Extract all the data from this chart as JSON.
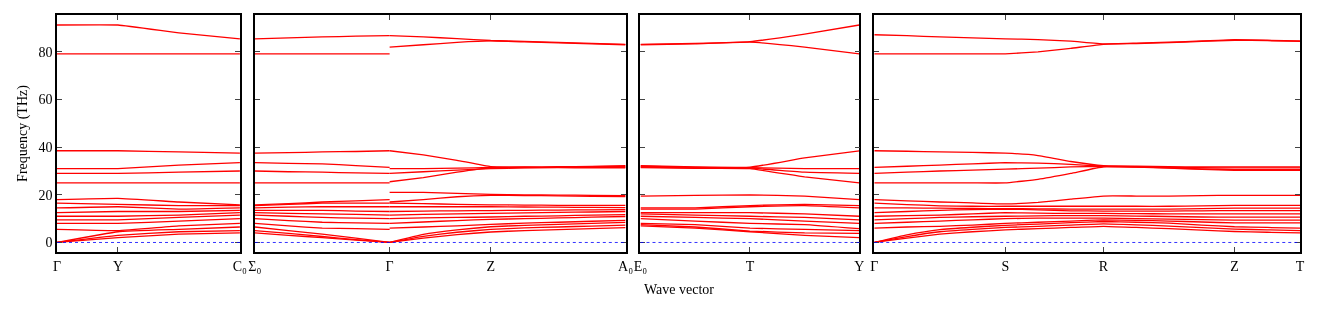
{
  "chart_data": [
    {
      "type": "line",
      "ylabel": "Frequency (THz)",
      "categories": [
        "Γ",
        "Y",
        null,
        "C₀"
      ],
      "ylim": [
        -4,
        95.5
      ],
      "yticks": [
        0,
        20,
        40,
        60,
        80
      ],
      "line_style": "solid",
      "marker": "none",
      "ref_lines": [
        {
          "axis": "y",
          "value": 0,
          "color": "#0000ff",
          "line_style": "dotted"
        }
      ],
      "series": [
        {
          "color": "#ff0000",
          "values": [
            91.3,
            91.3,
            88,
            85.5
          ]
        },
        {
          "color": "#ff0000",
          "values": [
            79.2,
            79.2,
            79.2,
            79.2
          ]
        },
        {
          "color": "#ff0000",
          "values": [
            38.5,
            38.5,
            38,
            37.5
          ]
        },
        {
          "color": "#ff0000",
          "values": [
            31,
            31,
            32.5,
            33.5
          ]
        },
        {
          "color": "#ff0000",
          "values": [
            29,
            29,
            29.5,
            30
          ]
        },
        {
          "color": "#ff0000",
          "values": [
            25,
            25,
            25,
            25
          ]
        },
        {
          "color": "#ff0000",
          "values": [
            0,
            2,
            3.5,
            4
          ]
        },
        {
          "color": "#ff0000",
          "values": [
            0,
            3,
            4.5,
            5
          ]
        },
        {
          "color": "#ff0000",
          "values": [
            0,
            4.5,
            5.5,
            6.5
          ]
        },
        {
          "color": "#ff0000",
          "values": [
            5.5,
            5,
            7,
            8
          ]
        },
        {
          "color": "#ff0000",
          "values": [
            8,
            8,
            9,
            10
          ]
        },
        {
          "color": "#ff0000",
          "values": [
            9.5,
            9.5,
            10.5,
            11.5
          ]
        },
        {
          "color": "#ff0000",
          "values": [
            11,
            11,
            11.5,
            12.5
          ]
        },
        {
          "color": "#ff0000",
          "values": [
            12.5,
            13,
            13,
            13.5
          ]
        },
        {
          "color": "#ff0000",
          "values": [
            14.5,
            15,
            14,
            14.5
          ]
        },
        {
          "color": "#ff0000",
          "values": [
            16.5,
            16,
            15.5,
            15.5
          ]
        },
        {
          "color": "#ff0000",
          "values": [
            18,
            18.5,
            17,
            15.8
          ]
        }
      ]
    },
    {
      "type": "line",
      "tick_labels": "x",
      "categories": [
        "Σ₀",
        null,
        null,
        null,
        "Γ",
        null,
        null,
        "Z",
        null,
        null,
        null,
        "A₀"
      ],
      "ylim": [
        -4,
        95.5
      ],
      "yticks": [
        {
          "value": 0,
          "label": null
        },
        {
          "value": 20,
          "label": null
        },
        {
          "value": 40,
          "label": null
        },
        {
          "value": 60,
          "label": null
        },
        {
          "value": 80,
          "label": null
        }
      ],
      "line_style": "solid",
      "marker": "none",
      "ref_lines": [
        {
          "axis": "y",
          "value": 0,
          "color": "#0000ff",
          "line_style": "dotted"
        }
      ],
      "series": [
        {
          "color": "#ff0000",
          "values": [
            85.5,
            85.9,
            86.3,
            86.6,
            86.8,
            null,
            null,
            null,
            null,
            null,
            null,
            null
          ]
        },
        {
          "color": "#ff0000",
          "values": [
            79.2,
            79.2,
            79.2,
            79.2,
            79.2,
            null,
            null,
            null,
            null,
            null,
            null,
            null
          ]
        },
        {
          "color": "#ff0000",
          "values": [
            37.5,
            37.7,
            38,
            38.2,
            38.5,
            null,
            null,
            null,
            null,
            null,
            null,
            null
          ]
        },
        {
          "color": "#ff0000",
          "values": [
            33.5,
            33.2,
            33,
            32.3,
            31.5,
            null,
            null,
            null,
            null,
            null,
            null,
            null
          ]
        },
        {
          "color": "#ff0000",
          "values": [
            30,
            29.7,
            29.5,
            29.2,
            29,
            null,
            null,
            null,
            null,
            null,
            null,
            null
          ]
        },
        {
          "color": "#ff0000",
          "values": [
            25,
            25,
            25,
            25,
            25,
            null,
            null,
            null,
            null,
            null,
            null,
            null
          ]
        },
        {
          "color": "#ff0000",
          "values": [
            4,
            3,
            2,
            1,
            0,
            null,
            null,
            null,
            null,
            null,
            null,
            null
          ]
        },
        {
          "color": "#ff0000",
          "values": [
            5,
            3.8,
            2.5,
            1.2,
            0,
            null,
            null,
            null,
            null,
            null,
            null,
            null
          ]
        },
        {
          "color": "#ff0000",
          "values": [
            6.5,
            5,
            3.5,
            1.8,
            0,
            null,
            null,
            null,
            null,
            null,
            null,
            null
          ]
        },
        {
          "color": "#ff0000",
          "values": [
            8,
            7,
            6,
            5.8,
            5.5,
            null,
            null,
            null,
            null,
            null,
            null,
            null
          ]
        },
        {
          "color": "#ff0000",
          "values": [
            10,
            9.2,
            8.5,
            8.2,
            8,
            null,
            null,
            null,
            null,
            null,
            null,
            null
          ]
        },
        {
          "color": "#ff0000",
          "values": [
            11.5,
            11,
            10.5,
            10.2,
            10,
            null,
            null,
            null,
            null,
            null,
            null,
            null
          ]
        },
        {
          "color": "#ff0000",
          "values": [
            12.5,
            12.2,
            12,
            11.8,
            11.5,
            null,
            null,
            null,
            null,
            null,
            null,
            null
          ]
        },
        {
          "color": "#ff0000",
          "values": [
            13.5,
            13.5,
            13.5,
            13.2,
            13,
            null,
            null,
            null,
            null,
            null,
            null,
            null
          ]
        },
        {
          "color": "#ff0000",
          "values": [
            14.5,
            14.8,
            15,
            15,
            15,
            null,
            null,
            null,
            null,
            null,
            null,
            null
          ]
        },
        {
          "color": "#ff0000",
          "values": [
            15.5,
            16,
            16.5,
            16.5,
            16.5,
            null,
            null,
            null,
            null,
            null,
            null,
            null
          ]
        },
        {
          "color": "#ff0000",
          "values": [
            15.8,
            16.3,
            17,
            17.5,
            18,
            null,
            null,
            null,
            null,
            null,
            null,
            null
          ]
        },
        {
          "color": "#ff0000",
          "values": [
            null,
            null,
            null,
            null,
            86.8,
            86.3,
            85.6,
            84.8,
            84.4,
            84,
            83.6,
            83.2
          ]
        },
        {
          "color": "#ff0000",
          "values": [
            null,
            null,
            null,
            null,
            82,
            83,
            84,
            84.6,
            84.2,
            83.8,
            83.4,
            83
          ]
        },
        {
          "color": "#ff0000",
          "values": [
            null,
            null,
            null,
            null,
            38.5,
            36.8,
            34.5,
            31.8,
            31.6,
            31.5,
            31.5,
            31.5
          ]
        },
        {
          "color": "#ff0000",
          "values": [
            null,
            null,
            null,
            null,
            31,
            31,
            31.2,
            31.5,
            31.7,
            31.8,
            31.9,
            32
          ]
        },
        {
          "color": "#ff0000",
          "values": [
            null,
            null,
            null,
            null,
            29,
            29.7,
            30.4,
            31,
            31.3,
            31.5,
            31.8,
            32.2
          ]
        },
        {
          "color": "#ff0000",
          "values": [
            null,
            null,
            null,
            null,
            25.5,
            27.2,
            29.5,
            31.3,
            31.4,
            31.4,
            31.3,
            31.3
          ]
        },
        {
          "color": "#ff0000",
          "values": [
            null,
            null,
            null,
            null,
            21,
            21,
            20.6,
            20.2,
            20,
            19.9,
            19.8,
            19.7
          ]
        },
        {
          "color": "#ff0000",
          "values": [
            null,
            null,
            null,
            null,
            17,
            18,
            19.2,
            19.8,
            19.7,
            19.6,
            19.4,
            19.3
          ]
        },
        {
          "color": "#ff0000",
          "values": [
            null,
            null,
            null,
            null,
            0,
            1.8,
            3.3,
            4.4,
            5,
            5.4,
            5.8,
            6.2
          ]
        },
        {
          "color": "#ff0000",
          "values": [
            null,
            null,
            null,
            null,
            0,
            2.6,
            4.3,
            5.5,
            6.1,
            6.5,
            6.9,
            7.3
          ]
        },
        {
          "color": "#ff0000",
          "values": [
            null,
            null,
            null,
            null,
            0,
            3.4,
            5.3,
            6.6,
            7.2,
            7.6,
            8,
            8.4
          ]
        },
        {
          "color": "#ff0000",
          "values": [
            null,
            null,
            null,
            null,
            6,
            6.5,
            7,
            7.6,
            8.1,
            8.5,
            8.9,
            9.3
          ]
        },
        {
          "color": "#ff0000",
          "values": [
            null,
            null,
            null,
            null,
            8,
            8.6,
            9.2,
            9.7,
            10,
            10.3,
            10.6,
            10.9
          ]
        },
        {
          "color": "#ff0000",
          "values": [
            null,
            null,
            null,
            null,
            10,
            10.3,
            10.5,
            10.7,
            11,
            11.2,
            11.5,
            11.7
          ]
        },
        {
          "color": "#ff0000",
          "values": [
            null,
            null,
            null,
            null,
            11.5,
            11.8,
            12,
            12.2,
            12.4,
            12.6,
            12.8,
            13
          ]
        },
        {
          "color": "#ff0000",
          "values": [
            null,
            null,
            null,
            null,
            13,
            13.2,
            13.3,
            13.4,
            13.5,
            13.6,
            13.7,
            13.8
          ]
        },
        {
          "color": "#ff0000",
          "values": [
            null,
            null,
            null,
            null,
            15,
            15,
            15,
            15,
            14.9,
            14.8,
            14.7,
            14.6
          ]
        },
        {
          "color": "#ff0000",
          "values": [
            null,
            null,
            null,
            null,
            16.5,
            16.3,
            16,
            15.8,
            15.7,
            15.6,
            15.6,
            15.6
          ]
        }
      ]
    },
    {
      "type": "line",
      "tick_labels": "x",
      "xlabel": "Wave vector",
      "categories": [
        "E₀",
        null,
        "T",
        null,
        "Y"
      ],
      "ylim": [
        -4,
        95.5
      ],
      "yticks": [
        {
          "value": 0,
          "label": null
        },
        {
          "value": 20,
          "label": null
        },
        {
          "value": 40,
          "label": null
        },
        {
          "value": 60,
          "label": null
        },
        {
          "value": 80,
          "label": null
        }
      ],
      "line_style": "solid",
      "marker": "none",
      "ref_lines": [
        {
          "axis": "y",
          "value": 0,
          "color": "#0000ff",
          "line_style": "dotted"
        }
      ],
      "series": [
        {
          "color": "#ff0000",
          "values": [
            83.2,
            83.6,
            84.3,
            87.5,
            91.3
          ]
        },
        {
          "color": "#ff0000",
          "values": [
            83,
            83.4,
            84.1,
            82,
            79.2
          ]
        },
        {
          "color": "#ff0000",
          "values": [
            32.2,
            31.7,
            31.6,
            35.5,
            38.5
          ]
        },
        {
          "color": "#ff0000",
          "values": [
            32,
            31.5,
            31.4,
            31,
            31
          ]
        },
        {
          "color": "#ff0000",
          "values": [
            31.6,
            31.3,
            31.2,
            29.5,
            29
          ]
        },
        {
          "color": "#ff0000",
          "values": [
            31.4,
            31.1,
            31,
            27.5,
            25
          ]
        },
        {
          "color": "#ff0000",
          "values": [
            19.5,
            19.8,
            20,
            19.5,
            18
          ]
        },
        {
          "color": "#ff0000",
          "values": [
            7,
            6,
            4.5,
            3,
            2
          ]
        },
        {
          "color": "#ff0000",
          "values": [
            7.5,
            6.5,
            4.8,
            4,
            3.8
          ]
        },
        {
          "color": "#ff0000",
          "values": [
            8,
            7.5,
            6,
            5.5,
            5
          ]
        },
        {
          "color": "#ff0000",
          "values": [
            10,
            9,
            8,
            7.5,
            5.8
          ]
        },
        {
          "color": "#ff0000",
          "values": [
            11,
            10.5,
            10,
            9,
            8
          ]
        },
        {
          "color": "#ff0000",
          "values": [
            12,
            11.5,
            11,
            10.5,
            9.5
          ]
        },
        {
          "color": "#ff0000",
          "values": [
            12.5,
            12.5,
            12.5,
            12,
            11
          ]
        },
        {
          "color": "#ff0000",
          "values": [
            14,
            14,
            15,
            15.5,
            14.5
          ]
        },
        {
          "color": "#ff0000",
          "values": [
            14.5,
            14.5,
            15.5,
            16,
            15.5
          ]
        }
      ]
    },
    {
      "type": "line",
      "tick_labels": "x",
      "categories": [
        "Γ",
        null,
        null,
        null,
        "S",
        null,
        null,
        "R",
        null,
        null,
        null,
        "Z",
        null,
        "T"
      ],
      "ylim": [
        -4,
        95.5
      ],
      "yticks": [
        {
          "value": 0,
          "label": null
        },
        {
          "value": 20,
          "label": null
        },
        {
          "value": 40,
          "label": null
        },
        {
          "value": 60,
          "label": null
        },
        {
          "value": 80,
          "label": null
        }
      ],
      "line_style": "solid",
      "marker": "none",
      "ref_lines": [
        {
          "axis": "y",
          "value": 0,
          "color": "#0000ff",
          "line_style": "dotted"
        }
      ],
      "series": [
        {
          "color": "#ff0000",
          "values": [
            87.2,
            86.8,
            86.3,
            85.9,
            85.5,
            85.2,
            84.5,
            83.4,
            83.7,
            84.1,
            84.6,
            85.1,
            84.9,
            84.6
          ]
        },
        {
          "color": "#ff0000",
          "values": [
            79.2,
            79.2,
            79.2,
            79.2,
            79.2,
            80,
            81.5,
            83.2,
            83.5,
            83.9,
            84.4,
            84.9,
            84.7,
            84.4
          ]
        },
        {
          "color": "#ff0000",
          "values": [
            38.5,
            38.3,
            38,
            37.8,
            37.5,
            36.5,
            34,
            32.2,
            32,
            31.8,
            31.7,
            31.7,
            31.7,
            31.7
          ]
        },
        {
          "color": "#ff0000",
          "values": [
            31.5,
            32,
            32.5,
            33,
            33.5,
            33.3,
            32.8,
            32,
            31.8,
            31.5,
            31.4,
            31.3,
            31.3,
            31.3
          ]
        },
        {
          "color": "#ff0000",
          "values": [
            29,
            29.5,
            30,
            30.4,
            30.8,
            31.2,
            31.7,
            31.9,
            31.7,
            31.3,
            30.9,
            30.6,
            30.6,
            30.6
          ]
        },
        {
          "color": "#ff0000",
          "values": [
            25,
            25,
            25,
            25,
            25,
            26.5,
            29,
            31.8,
            31.6,
            31.2,
            30.7,
            30.3,
            30.3,
            30.3
          ]
        },
        {
          "color": "#ff0000",
          "values": [
            18,
            17.5,
            17,
            16.6,
            16.2,
            16.8,
            18.2,
            19.5,
            19.5,
            19.5,
            19.7,
            19.8,
            19.8,
            19.8
          ]
        },
        {
          "color": "#ff0000",
          "values": [
            0,
            1.8,
            3.5,
            4.5,
            5.3,
            5.8,
            6.3,
            6.8,
            6.3,
            5.8,
            5.2,
            4.6,
            4.3,
            4
          ]
        },
        {
          "color": "#ff0000",
          "values": [
            0,
            2.5,
            4.5,
            5.5,
            6.3,
            6.8,
            7.3,
            7.8,
            7.4,
            6.9,
            6.2,
            5.6,
            5.3,
            5
          ]
        },
        {
          "color": "#ff0000",
          "values": [
            0,
            3.2,
            5.4,
            6.4,
            7.2,
            7.7,
            8.3,
            8.8,
            8.5,
            8.1,
            7.3,
            6.6,
            6.3,
            6
          ]
        },
        {
          "color": "#ff0000",
          "values": [
            6,
            6.5,
            6.8,
            7.3,
            8,
            8.5,
            9,
            9.5,
            9.3,
            9,
            8.6,
            8.2,
            8.2,
            8.2
          ]
        },
        {
          "color": "#ff0000",
          "values": [
            8,
            8.5,
            9,
            9.5,
            10,
            10.2,
            10.2,
            10.2,
            10,
            9.8,
            9.6,
            9.4,
            9.4,
            9.4
          ]
        },
        {
          "color": "#ff0000",
          "values": [
            9.5,
            10,
            10.5,
            10.8,
            11,
            11.2,
            11.3,
            11.3,
            11.1,
            10.9,
            10.7,
            10.6,
            10.6,
            10.6
          ]
        },
        {
          "color": "#ff0000",
          "values": [
            11,
            11.3,
            11.5,
            12,
            12.5,
            12.3,
            12.2,
            12.2,
            12.1,
            12,
            12,
            12,
            12,
            12
          ]
        },
        {
          "color": "#ff0000",
          "values": [
            12.5,
            13,
            13.5,
            13.8,
            14,
            13.7,
            13.3,
            13.2,
            13.2,
            13.2,
            13.3,
            13.4,
            13.4,
            13.4
          ]
        },
        {
          "color": "#ff0000",
          "values": [
            14.5,
            14.5,
            14.4,
            14.3,
            14.2,
            14.1,
            14,
            14,
            14,
            14,
            14.2,
            14.4,
            14.4,
            14.4
          ]
        },
        {
          "color": "#ff0000",
          "values": [
            16.5,
            15.9,
            15.4,
            15.2,
            15.2,
            15.2,
            15.2,
            15.2,
            15.2,
            15.2,
            15.4,
            15.6,
            15.6,
            15.6
          ]
        }
      ]
    }
  ]
}
